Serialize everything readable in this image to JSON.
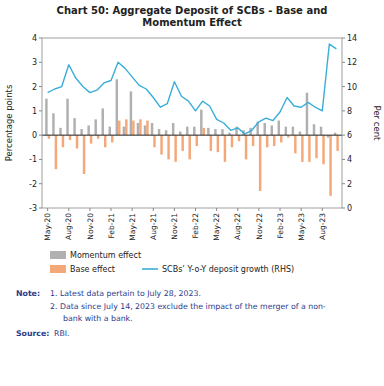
{
  "chart_data": {
    "type": "bar",
    "title": "Chart 50: Aggregate Deposit of SCBs - Base and\nMomentum Effect",
    "y_label": "Percentage points",
    "y2_label": "Per cent",
    "categories": [
      "May-20",
      null,
      null,
      "Aug-20",
      null,
      null,
      "Nov-20",
      null,
      null,
      "Feb-21",
      null,
      null,
      "May-21",
      null,
      null,
      "Aug-21",
      null,
      null,
      "Nov-21",
      null,
      null,
      "Feb-22",
      null,
      null,
      "May-22",
      null,
      null,
      "Aug-22",
      null,
      null,
      "Nov-22",
      null,
      null,
      "Feb-23",
      null,
      null,
      "May-23",
      null,
      null,
      "Aug-23",
      null,
      null
    ],
    "series": [
      {
        "name": "Momentum effect",
        "type": "bar",
        "color": "#b0b0b0",
        "values": [
          1.5,
          0.9,
          0.3,
          1.5,
          0.7,
          0.25,
          0.4,
          0.65,
          1.1,
          0.35,
          2.3,
          0.35,
          1.8,
          0.5,
          0.4,
          0.5,
          0.25,
          0.2,
          0.5,
          0.15,
          0.35,
          0.35,
          1.05,
          0.3,
          0.25,
          0.25,
          0.1,
          0.35,
          0.2,
          0.3,
          0.55,
          0.5,
          0.4,
          0.6,
          0.35,
          0.35,
          0.15,
          1.75,
          0.45,
          0.35,
          -0.1,
          0.1
        ]
      },
      {
        "name": "Base effect",
        "type": "bar",
        "color": "#f4a87a",
        "values": [
          -0.15,
          -1.4,
          -0.5,
          -0.2,
          -0.55,
          -1.6,
          -0.35,
          -0.15,
          -0.5,
          -0.3,
          0.6,
          0.65,
          0.6,
          0.65,
          0.6,
          -0.5,
          -0.8,
          -1.0,
          -1.1,
          -0.65,
          -1.0,
          -0.45,
          0.3,
          -0.65,
          -0.7,
          -1.1,
          -0.5,
          -0.25,
          -1.0,
          -0.45,
          -2.3,
          -0.5,
          -0.45,
          -0.3,
          -0.1,
          -0.75,
          -1.1,
          -1.1,
          -0.95,
          -1.2,
          -2.5,
          -0.65
        ]
      },
      {
        "name": "SCBs’ Y-o-Y deposit growth (RHS)",
        "type": "line",
        "axis": "y2",
        "color": "#3aaed8",
        "values": [
          9.5,
          9.8,
          10.0,
          11.8,
          10.7,
          10.0,
          9.5,
          9.7,
          10.3,
          10.5,
          12.0,
          11.5,
          10.8,
          10.1,
          9.8,
          9.1,
          8.3,
          8.6,
          10.4,
          9.2,
          8.8,
          8.0,
          8.8,
          8.4,
          7.3,
          7.0,
          6.4,
          6.6,
          6.1,
          6.4,
          7.1,
          7.4,
          7.2,
          7.9,
          9.1,
          8.4,
          8.3,
          8.7,
          8.3,
          8.0,
          13.5,
          13.1
        ]
      }
    ],
    "ylim": [
      -3,
      4
    ],
    "yticks": [
      -3,
      -2,
      -1,
      0,
      1,
      2,
      3,
      4
    ],
    "y2lim": [
      0,
      14
    ],
    "y2ticks": [
      0,
      2,
      4,
      6,
      8,
      10,
      12,
      14
    ],
    "grid": false,
    "legend": "bottom",
    "annotations": [
      "Note:",
      "1.  Latest data pertain to July 28, 2023.",
      "2.  Data since July 14, 2023 exclude the impact of the merger of a non-",
      "bank with a bank.",
      "Source:",
      "RBI."
    ]
  }
}
